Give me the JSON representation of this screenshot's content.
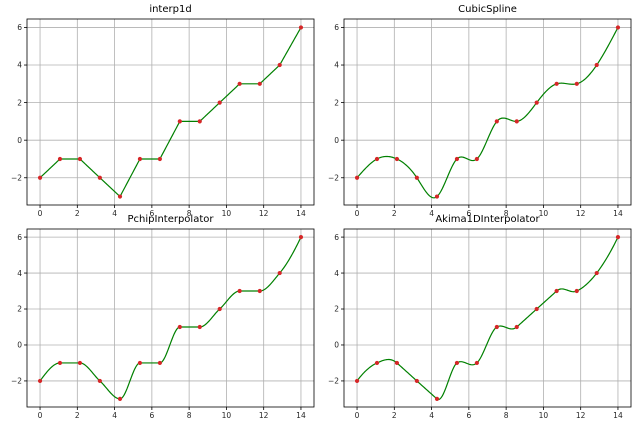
{
  "chart_data": [
    {
      "type": "line",
      "title": "interp1d",
      "kind": "linear",
      "x": [
        0,
        1.07,
        2.14,
        3.21,
        4.29,
        5.36,
        6.43,
        7.5,
        8.57,
        9.64,
        10.71,
        11.79,
        12.86,
        14
      ],
      "y": [
        -2,
        -1,
        -1,
        -2,
        -3,
        -1,
        -1,
        1,
        1,
        2,
        3,
        3,
        4,
        6
      ],
      "xlim": [
        -0.7,
        14.7
      ],
      "ylim": [
        -3.45,
        6.45
      ],
      "xticks": [
        0,
        2,
        4,
        6,
        8,
        10,
        12,
        14
      ],
      "yticks": [
        -2,
        0,
        2,
        4,
        6
      ],
      "xtick_labels": [
        "0",
        "2",
        "4",
        "6",
        "8",
        "10",
        "12",
        "14"
      ],
      "ytick_labels": [
        "−2",
        "0",
        "2",
        "4",
        "6"
      ],
      "grid": true,
      "line_color": "#008000",
      "marker_color": "#d62728"
    },
    {
      "type": "line",
      "title": "CubicSpline",
      "kind": "cubic",
      "x": [
        0,
        1.07,
        2.14,
        3.21,
        4.29,
        5.36,
        6.43,
        7.5,
        8.57,
        9.64,
        10.71,
        11.79,
        12.86,
        14
      ],
      "y": [
        -2,
        -1,
        -1,
        -2,
        -3,
        -1,
        -1,
        1,
        1,
        2,
        3,
        3,
        4,
        6
      ],
      "xlim": [
        -0.7,
        14.7
      ],
      "ylim": [
        -3.45,
        6.45
      ],
      "xticks": [
        0,
        2,
        4,
        6,
        8,
        10,
        12,
        14
      ],
      "yticks": [
        -2,
        0,
        2,
        4,
        6
      ],
      "xtick_labels": [
        "0",
        "2",
        "4",
        "6",
        "8",
        "10",
        "12",
        "14"
      ],
      "ytick_labels": [
        "−2",
        "0",
        "2",
        "4",
        "6"
      ],
      "grid": true,
      "line_color": "#008000",
      "marker_color": "#d62728"
    },
    {
      "type": "line",
      "title": "PchipInterpolator",
      "kind": "pchip",
      "x": [
        0,
        1.07,
        2.14,
        3.21,
        4.29,
        5.36,
        6.43,
        7.5,
        8.57,
        9.64,
        10.71,
        11.79,
        12.86,
        14
      ],
      "y": [
        -2,
        -1,
        -1,
        -2,
        -3,
        -1,
        -1,
        1,
        1,
        2,
        3,
        3,
        4,
        6
      ],
      "xlim": [
        -0.7,
        14.7
      ],
      "ylim": [
        -3.45,
        6.45
      ],
      "xticks": [
        0,
        2,
        4,
        6,
        8,
        10,
        12,
        14
      ],
      "yticks": [
        -2,
        0,
        2,
        4,
        6
      ],
      "xtick_labels": [
        "0",
        "2",
        "4",
        "6",
        "8",
        "10",
        "12",
        "14"
      ],
      "ytick_labels": [
        "−2",
        "0",
        "2",
        "4",
        "6"
      ],
      "grid": true,
      "line_color": "#008000",
      "marker_color": "#d62728"
    },
    {
      "type": "line",
      "title": "Akima1DInterpolator",
      "kind": "akima",
      "x": [
        0,
        1.07,
        2.14,
        3.21,
        4.29,
        5.36,
        6.43,
        7.5,
        8.57,
        9.64,
        10.71,
        11.79,
        12.86,
        14
      ],
      "y": [
        -2,
        -1,
        -1,
        -2,
        -3,
        -1,
        -1,
        1,
        1,
        2,
        3,
        3,
        4,
        6
      ],
      "xlim": [
        -0.7,
        14.7
      ],
      "ylim": [
        -3.45,
        6.45
      ],
      "xticks": [
        0,
        2,
        4,
        6,
        8,
        10,
        12,
        14
      ],
      "yticks": [
        -2,
        0,
        2,
        4,
        6
      ],
      "xtick_labels": [
        "0",
        "2",
        "4",
        "6",
        "8",
        "10",
        "12",
        "14"
      ],
      "ytick_labels": [
        "−2",
        "0",
        "2",
        "4",
        "6"
      ],
      "grid": true,
      "line_color": "#008000",
      "marker_color": "#d62728"
    }
  ]
}
